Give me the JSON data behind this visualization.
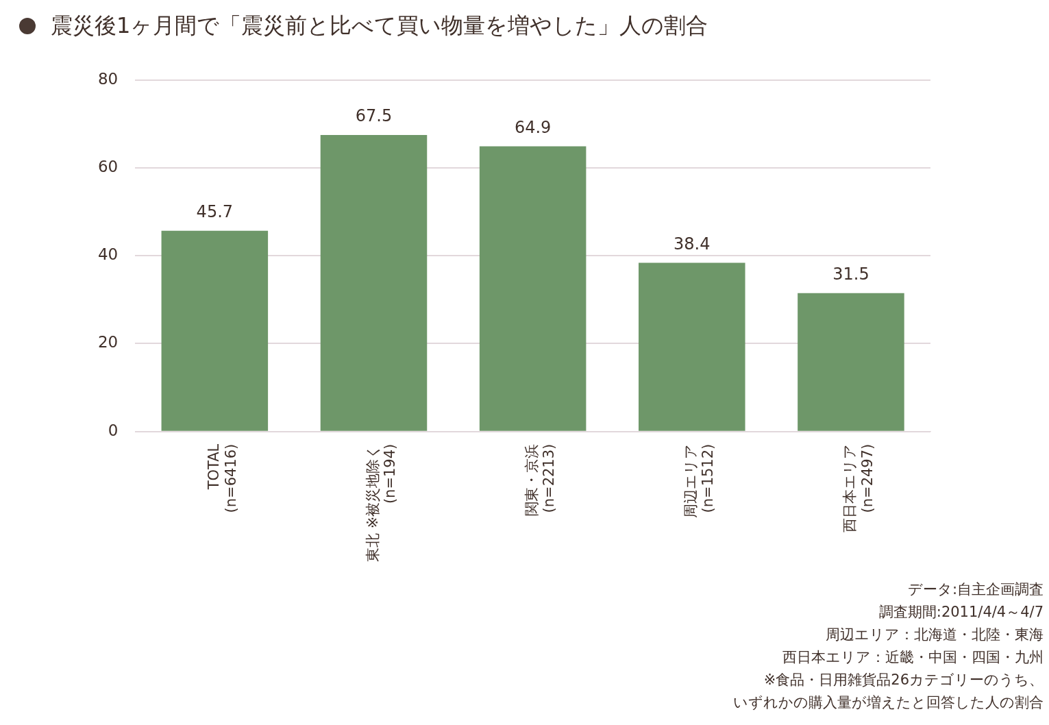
{
  "chart_data": {
    "type": "bar",
    "title": "震災後1ヶ月間で「震災前と比べて買い物量を増やした」人の割合",
    "categories": [
      "TOTAL\n(n=6416)",
      "東北 ※被災地除く\n(n=194)",
      "関東・京浜\n(n=2213)",
      "周辺エリア\n(n=1512)",
      "西日本エリア\n(n=2497)"
    ],
    "values": [
      45.7,
      67.5,
      64.9,
      38.4,
      31.5
    ],
    "color": "#6e9769",
    "data_labels": true,
    "ylim": [
      0,
      80
    ],
    "yticks": [
      0,
      20,
      40,
      60,
      80
    ],
    "grid": "y",
    "annotations": [
      "データ:自主企画調査",
      "調査期間:2011/4/4～4/7",
      "周辺エリア：北海道・北陸・東海",
      "西日本エリア：近畿・中国・四国・九州",
      "※食品・日用雑貨品26カテゴリーのうち、",
      "いずれかの購入量が増えたと回答した人の割合"
    ]
  }
}
